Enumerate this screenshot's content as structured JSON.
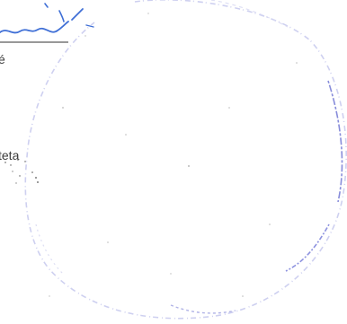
{
  "document": {
    "fragments": {
      "top": "é",
      "middle": "teta"
    }
  },
  "stamp": {
    "shape": "circle",
    "color": "#6a6fd0",
    "legible_text": ""
  },
  "signature": {
    "color": "#3f6fd6"
  },
  "colors": {
    "ink": "#3a3a3a",
    "rule": "#5a5a5a",
    "stamp": "#6a6fd0",
    "signature": "#3f6fd6"
  }
}
